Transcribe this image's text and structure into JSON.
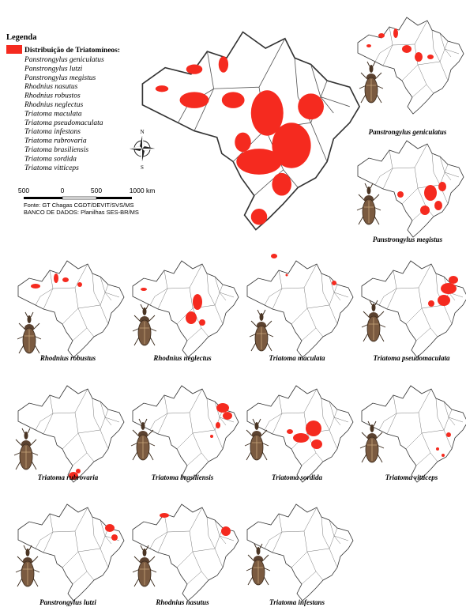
{
  "legend": {
    "title": "Legenda",
    "heading": "Distribuição de Triatomíneos:",
    "species": [
      "Panstrongylus geniculatus",
      "Panstrongylus lutzi",
      "Panstrongylus megistus",
      "Rhodnius nasutus",
      "Rhodnius robustos",
      "Rhodnius neglectus",
      "Triatoma maculata",
      "Triatoma pseudomaculata",
      "Triatoma infestans",
      "Triatoma rubrovaria",
      "Triatoma brasiliensis",
      "Triatoma sordida",
      "Triatoma vitticeps"
    ]
  },
  "scale_bar": {
    "labels": [
      "500",
      "0",
      "500",
      "1000 km"
    ]
  },
  "compass": {
    "north": "N",
    "south": "S"
  },
  "source": [
    "Fonte: GT Chagas CGDT/DEVIT/SVS/MS",
    "BANCO DE DADOS: Planilhas SES-BR/MS"
  ],
  "panels": [
    "Panstrongylus geniculatus",
    "Panstrongylus megistus",
    "Rhodnius robustus",
    "Rhodnius neglectus",
    "Triatoma maculata",
    "Triatoma pseudomaculata",
    "Triatoma rubrovaria",
    "Triatoma brasiliensis",
    "Triatoma sordida",
    "Triatoma vitticeps",
    "Panstrongylus lutzi",
    "Rhodnius nasutus",
    "Triatoma infestans"
  ]
}
